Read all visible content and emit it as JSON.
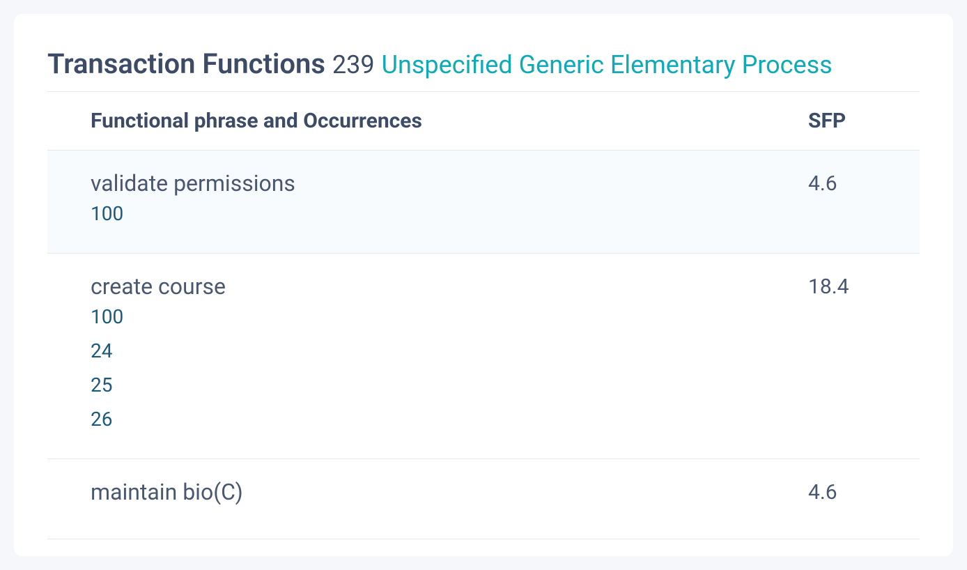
{
  "colors": {
    "page_bg": "#f5f7fa",
    "card_bg": "#ffffff",
    "heading_text": "#3d4b66",
    "subtitle_text": "#0faab8",
    "body_text": "#4a5770",
    "link_text": "#1a5a7a",
    "border": "#e3e8ee",
    "row_highlight": "#f7fbfd"
  },
  "header": {
    "title": "Transaction Functions",
    "count": "239",
    "subtitle": "Unspecified Generic Elementary Process"
  },
  "table": {
    "columns": {
      "phrase": "Functional phrase and Occurrences",
      "sfp": "SFP"
    },
    "rows": [
      {
        "phrase": "validate permissions",
        "occurrences": [
          "100"
        ],
        "sfp": "4.6",
        "highlighted": true
      },
      {
        "phrase": "create course",
        "occurrences": [
          "100",
          "24",
          "25",
          "26"
        ],
        "sfp": "18.4",
        "highlighted": false
      },
      {
        "phrase": "maintain bio(C)",
        "occurrences": [],
        "sfp": "4.6",
        "highlighted": false
      }
    ]
  }
}
